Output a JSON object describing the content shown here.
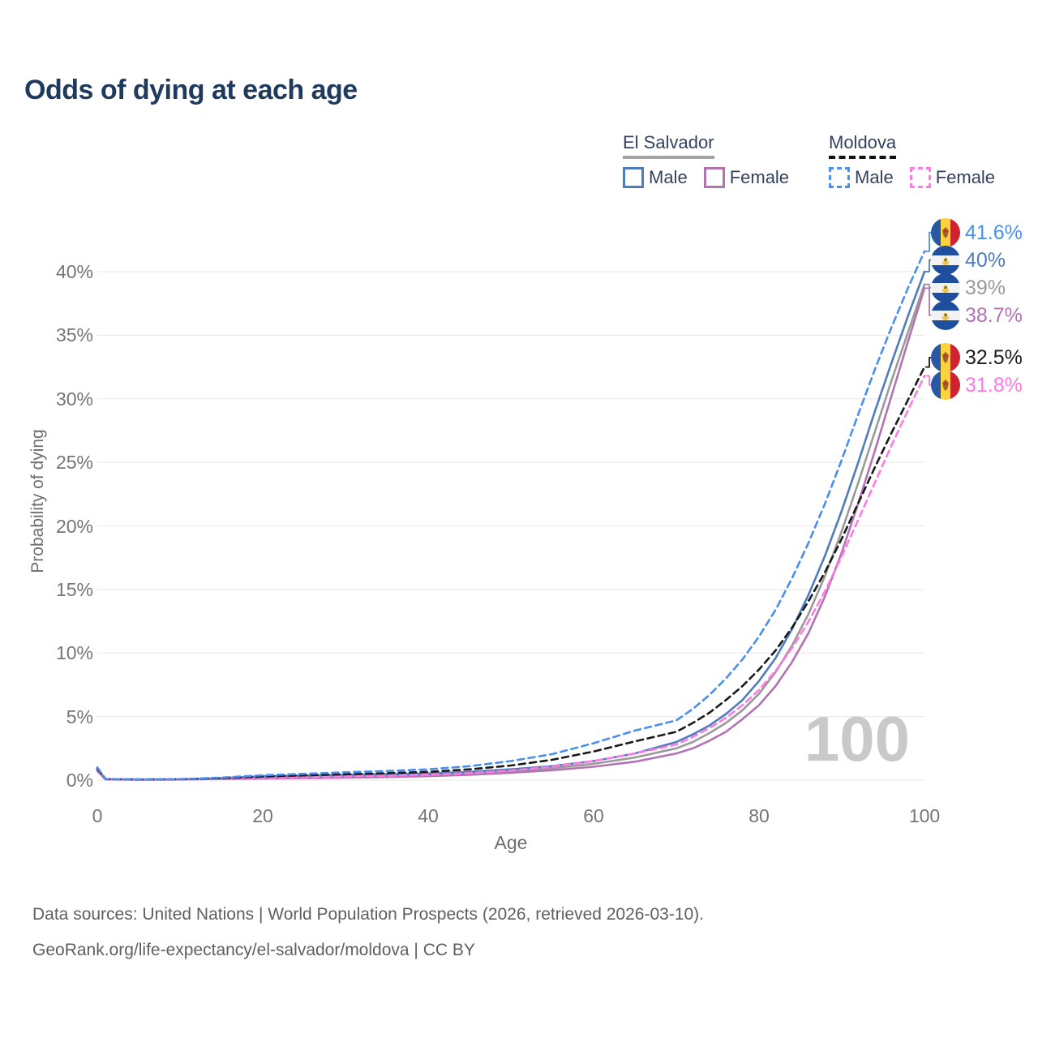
{
  "title": "Odds of dying at each age",
  "legend": {
    "groups": [
      {
        "name": "El Salvador",
        "underline_color": "#a3a3a3",
        "underline_style": "solid",
        "items": [
          {
            "label": "Male",
            "color": "#4f7cbb",
            "dash": false
          },
          {
            "label": "Female",
            "color": "#b273b2",
            "dash": false
          }
        ]
      },
      {
        "name": "Moldova",
        "underline_color": "#111111",
        "underline_style": "dashed",
        "items": [
          {
            "label": "Male",
            "color": "#4a8ff0",
            "dash": true
          },
          {
            "label": "Female",
            "color": "#ff7ae5",
            "dash": true
          }
        ]
      }
    ]
  },
  "chart_data": {
    "type": "line",
    "title": "Odds of dying at each age",
    "xlabel": "Age",
    "ylabel": "Probability of dying",
    "watermark": "100",
    "grid": true,
    "xlim": [
      0,
      100
    ],
    "ylim": [
      0,
      43
    ],
    "xticks": {
      "values": [
        0,
        20,
        40,
        60,
        80,
        100
      ],
      "labels": [
        "0",
        "20",
        "40",
        "60",
        "80",
        "100"
      ]
    },
    "yticks": {
      "values": [
        0,
        5,
        10,
        15,
        20,
        25,
        30,
        35,
        40
      ],
      "labels": [
        "0%",
        "5%",
        "10%",
        "15%",
        "20%",
        "25%",
        "30%",
        "35%",
        "40%"
      ]
    },
    "x": [
      0,
      1,
      5,
      10,
      15,
      20,
      25,
      30,
      35,
      40,
      45,
      50,
      55,
      60,
      65,
      70,
      72,
      74,
      76,
      78,
      80,
      82,
      84,
      86,
      88,
      90,
      92,
      94,
      96,
      98,
      100
    ],
    "series": [
      {
        "name": "El Salvador Both sexes",
        "country": "El Salvador",
        "sex": "Both",
        "flag": "el-salvador",
        "color": "#9a9a9a",
        "dash": false,
        "end_label": "39%",
        "values": [
          0.8,
          0.07,
          0.045,
          0.055,
          0.12,
          0.21,
          0.26,
          0.31,
          0.36,
          0.42,
          0.54,
          0.72,
          0.94,
          1.28,
          1.78,
          2.5,
          3.0,
          3.7,
          4.5,
          5.5,
          6.8,
          8.5,
          10.6,
          13.1,
          16.1,
          19.6,
          23.4,
          27.4,
          31.4,
          35.2,
          39.0
        ]
      },
      {
        "name": "El Salvador Female",
        "country": "El Salvador",
        "sex": "Female",
        "flag": "el-salvador",
        "color": "#b273b2",
        "dash": false,
        "end_label": "38.7%",
        "values": [
          0.7,
          0.06,
          0.04,
          0.05,
          0.08,
          0.12,
          0.15,
          0.19,
          0.24,
          0.31,
          0.42,
          0.58,
          0.78,
          1.05,
          1.45,
          2.1,
          2.5,
          3.1,
          3.8,
          4.8,
          5.9,
          7.4,
          9.3,
          11.6,
          14.5,
          17.9,
          21.8,
          25.9,
          30.2,
          34.5,
          38.7
        ]
      },
      {
        "name": "El Salvador Male",
        "country": "El Salvador",
        "sex": "Male",
        "flag": "el-salvador",
        "color": "#4f7cbb",
        "dash": false,
        "end_label": "40%",
        "values": [
          0.9,
          0.08,
          0.05,
          0.06,
          0.15,
          0.3,
          0.36,
          0.42,
          0.47,
          0.52,
          0.65,
          0.85,
          1.1,
          1.5,
          2.1,
          3.0,
          3.6,
          4.3,
          5.2,
          6.3,
          7.8,
          9.6,
          11.9,
          14.6,
          17.7,
          21.2,
          25.0,
          29.0,
          32.8,
          36.5,
          40.0
        ]
      },
      {
        "name": "Moldova Female",
        "country": "Moldova",
        "sex": "Female",
        "flag": "moldova",
        "color": "#ff7ae5",
        "dash": true,
        "end_label": "31.8%",
        "values": [
          0.8,
          0.07,
          0.045,
          0.06,
          0.1,
          0.17,
          0.22,
          0.28,
          0.34,
          0.42,
          0.55,
          0.75,
          1.05,
          1.5,
          2.1,
          2.8,
          3.4,
          4.1,
          4.9,
          5.9,
          7.1,
          8.6,
          10.4,
          12.5,
          14.9,
          17.6,
          20.5,
          23.4,
          26.3,
          29.1,
          31.8
        ]
      },
      {
        "name": "Moldova Both sexes",
        "country": "Moldova",
        "sex": "Both",
        "flag": "moldova",
        "color": "#1a1a1a",
        "dash": true,
        "end_label": "32.5%",
        "values": [
          0.9,
          0.08,
          0.05,
          0.07,
          0.15,
          0.28,
          0.37,
          0.46,
          0.55,
          0.65,
          0.85,
          1.15,
          1.6,
          2.25,
          3.05,
          3.8,
          4.5,
          5.3,
          6.3,
          7.4,
          8.7,
          10.2,
          12.0,
          14.1,
          16.4,
          19.0,
          21.8,
          24.6,
          27.3,
          29.9,
          32.5
        ]
      },
      {
        "name": "Moldova Male",
        "country": "Moldova",
        "sex": "Male",
        "flag": "moldova",
        "color": "#4a8ff0",
        "dash": true,
        "end_label": "41.6%",
        "values": [
          1.0,
          0.09,
          0.06,
          0.08,
          0.2,
          0.38,
          0.5,
          0.62,
          0.72,
          0.85,
          1.1,
          1.5,
          2.05,
          2.9,
          3.9,
          4.7,
          5.6,
          6.7,
          8.0,
          9.5,
          11.3,
          13.4,
          15.9,
          18.7,
          21.8,
          25.2,
          28.8,
          32.3,
          35.6,
          38.7,
          41.6
        ]
      }
    ]
  },
  "footer": {
    "line1": "Data sources: United Nations | World Population Prospects (2026, retrieved 2026-03-10).",
    "line2": "GeoRank.org/life-expectancy/el-salvador/moldova | CC BY"
  },
  "flag_colors": {
    "el_salvador_blue": "#1d4f9e",
    "moldova_blue": "#2a57a5",
    "moldova_yellow": "#fdd33c",
    "moldova_red": "#cf2330"
  }
}
